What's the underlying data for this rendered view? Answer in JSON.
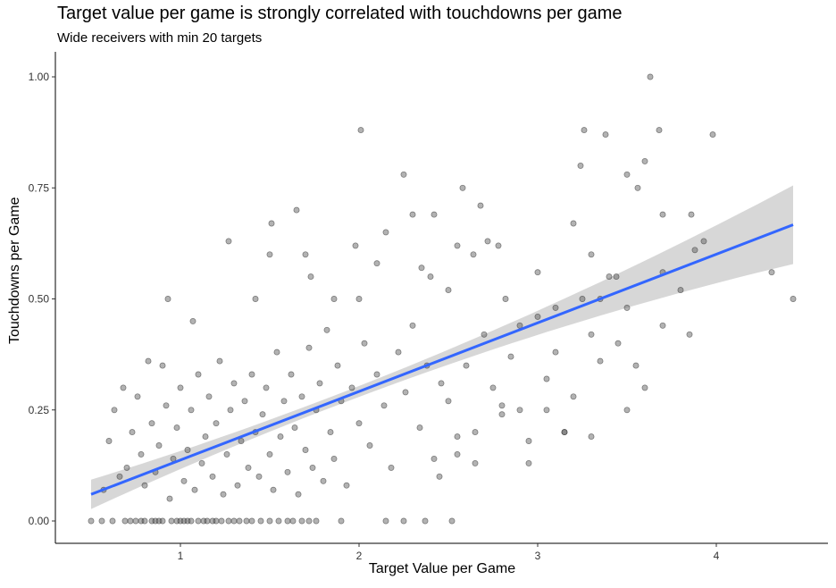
{
  "chart_data": {
    "type": "scatter",
    "title": "Target value per game is strongly correlated with touchdowns per game",
    "subtitle": "Wide receivers with min 20 targets",
    "xlabel": "Target Value per Game",
    "ylabel": "Touchdowns per Game",
    "xlim": [
      0.3,
      4.6
    ],
    "ylim": [
      -0.05,
      1.05
    ],
    "x_ticks": [
      1,
      2,
      3,
      4
    ],
    "x_tick_labels": [
      "1",
      "2",
      "3",
      "4"
    ],
    "y_ticks": [
      0,
      0.25,
      0.5,
      0.75,
      1
    ],
    "y_tick_labels": [
      "0.00",
      "0.25",
      "0.50",
      "0.75",
      "1.00"
    ],
    "grid": false,
    "colors": {
      "points": "#555555",
      "trend": "#3366ff",
      "ribbon": "#bdbdbd"
    },
    "trend": {
      "x": [
        0.5,
        4.43
      ],
      "y": [
        0.06,
        0.667
      ]
    },
    "series": [
      {
        "x": [
          0.5,
          0.56,
          0.62,
          0.69,
          0.72,
          0.75,
          0.78,
          0.8,
          0.84,
          0.86,
          0.88,
          0.9,
          0.95,
          0.98,
          1.0,
          1.02,
          1.04,
          1.06,
          1.1,
          1.13,
          1.15,
          1.18,
          1.2,
          1.23,
          1.27,
          1.3,
          1.33,
          1.37,
          1.4,
          1.45,
          1.5,
          1.55,
          1.6,
          1.63,
          1.68,
          1.72,
          1.76,
          1.9,
          2.15,
          2.25,
          2.37,
          2.52
        ],
        "y": [
          0,
          0,
          0,
          0,
          0,
          0,
          0,
          0,
          0,
          0,
          0,
          0,
          0,
          0,
          0,
          0,
          0,
          0,
          0,
          0,
          0,
          0,
          0,
          0,
          0,
          0,
          0,
          0,
          0,
          0,
          0,
          0,
          0,
          0,
          0,
          0,
          0,
          0,
          0,
          0,
          0,
          0
        ]
      },
      {
        "x": [
          0.57,
          0.6,
          0.63,
          0.66,
          0.68,
          0.7,
          0.73,
          0.76,
          0.78,
          0.8,
          0.82,
          0.84,
          0.86,
          0.88,
          0.9,
          0.92,
          0.94,
          0.96,
          0.98,
          1.0,
          1.02,
          1.04,
          1.06,
          1.08,
          1.1,
          1.12,
          1.14,
          1.16,
          1.18,
          1.2,
          1.22,
          1.24,
          1.26,
          1.28,
          1.3,
          1.32,
          1.34,
          1.36,
          1.38,
          1.4,
          1.42,
          1.44,
          1.46,
          1.48,
          1.5,
          1.52,
          1.54,
          1.56,
          1.58,
          1.6,
          1.62,
          1.64,
          1.66,
          1.68,
          1.7,
          1.72,
          1.74,
          1.76,
          1.78,
          1.8,
          1.82,
          1.84,
          1.86,
          1.88,
          1.9,
          1.93,
          1.96,
          2.0,
          2.03,
          2.06,
          2.1,
          2.14,
          2.18,
          2.22,
          2.26,
          2.3,
          2.34,
          2.38,
          2.42,
          2.46,
          2.5,
          2.55,
          2.6,
          2.65,
          2.7,
          2.75,
          2.8,
          2.85,
          2.9,
          2.95,
          3.0,
          3.05,
          3.1,
          3.15,
          3.2,
          3.25,
          3.3,
          3.35,
          3.4,
          3.5,
          3.6,
          3.7,
          3.8,
          3.88
        ],
        "y": [
          0.07,
          0.18,
          0.25,
          0.1,
          0.3,
          0.12,
          0.2,
          0.28,
          0.15,
          0.08,
          0.36,
          0.22,
          0.11,
          0.17,
          0.35,
          0.26,
          0.05,
          0.14,
          0.21,
          0.3,
          0.09,
          0.16,
          0.25,
          0.07,
          0.33,
          0.13,
          0.19,
          0.28,
          0.1,
          0.22,
          0.36,
          0.06,
          0.15,
          0.25,
          0.31,
          0.08,
          0.18,
          0.27,
          0.12,
          0.33,
          0.2,
          0.1,
          0.24,
          0.3,
          0.15,
          0.07,
          0.38,
          0.19,
          0.27,
          0.11,
          0.33,
          0.21,
          0.06,
          0.28,
          0.16,
          0.39,
          0.12,
          0.25,
          0.31,
          0.09,
          0.43,
          0.2,
          0.14,
          0.35,
          0.27,
          0.08,
          0.3,
          0.22,
          0.4,
          0.17,
          0.33,
          0.26,
          0.12,
          0.38,
          0.29,
          0.44,
          0.21,
          0.35,
          0.14,
          0.31,
          0.27,
          0.19,
          0.35,
          0.13,
          0.42,
          0.3,
          0.24,
          0.37,
          0.25,
          0.18,
          0.46,
          0.32,
          0.38,
          0.2,
          0.28,
          0.5,
          0.42,
          0.36,
          0.55,
          0.48,
          0.3,
          0.56,
          0.52,
          0.61
        ],
        "name": ""
      },
      {
        "x": [
          0.93,
          1.07,
          1.27,
          1.42,
          1.5,
          1.51,
          1.65,
          1.7,
          1.73,
          1.86,
          1.98,
          2.0,
          2.01,
          2.1,
          2.15,
          2.25,
          2.3,
          2.35,
          2.4,
          2.42,
          2.5,
          2.55,
          2.58,
          2.64,
          2.68,
          2.72,
          2.78,
          2.82,
          2.9,
          3.0,
          3.1,
          3.2,
          3.24,
          3.26,
          3.3,
          3.35,
          3.38,
          3.44,
          3.5,
          3.56,
          3.6,
          3.63,
          3.68,
          3.7,
          3.86,
          3.93,
          3.98,
          4.31,
          4.43
        ],
        "y": [
          0.5,
          0.45,
          0.63,
          0.5,
          0.6,
          0.67,
          0.7,
          0.6,
          0.55,
          0.5,
          0.62,
          0.5,
          0.88,
          0.58,
          0.65,
          0.78,
          0.69,
          0.57,
          0.55,
          0.69,
          0.52,
          0.62,
          0.75,
          0.6,
          0.71,
          0.63,
          0.62,
          0.5,
          0.44,
          0.56,
          0.48,
          0.67,
          0.8,
          0.88,
          0.6,
          0.5,
          0.87,
          0.55,
          0.78,
          0.75,
          0.81,
          1.0,
          0.88,
          0.69,
          0.69,
          0.63,
          0.87,
          0.56,
          0.5
        ],
        "name": ""
      },
      {
        "x": [
          2.45,
          2.55,
          2.65,
          2.8,
          2.95,
          3.05,
          3.15,
          3.3,
          3.45,
          3.5,
          3.55,
          3.7,
          3.85
        ],
        "y": [
          0.1,
          0.15,
          0.2,
          0.26,
          0.13,
          0.25,
          0.2,
          0.19,
          0.4,
          0.25,
          0.35,
          0.44,
          0.42
        ],
        "name": ""
      }
    ]
  }
}
